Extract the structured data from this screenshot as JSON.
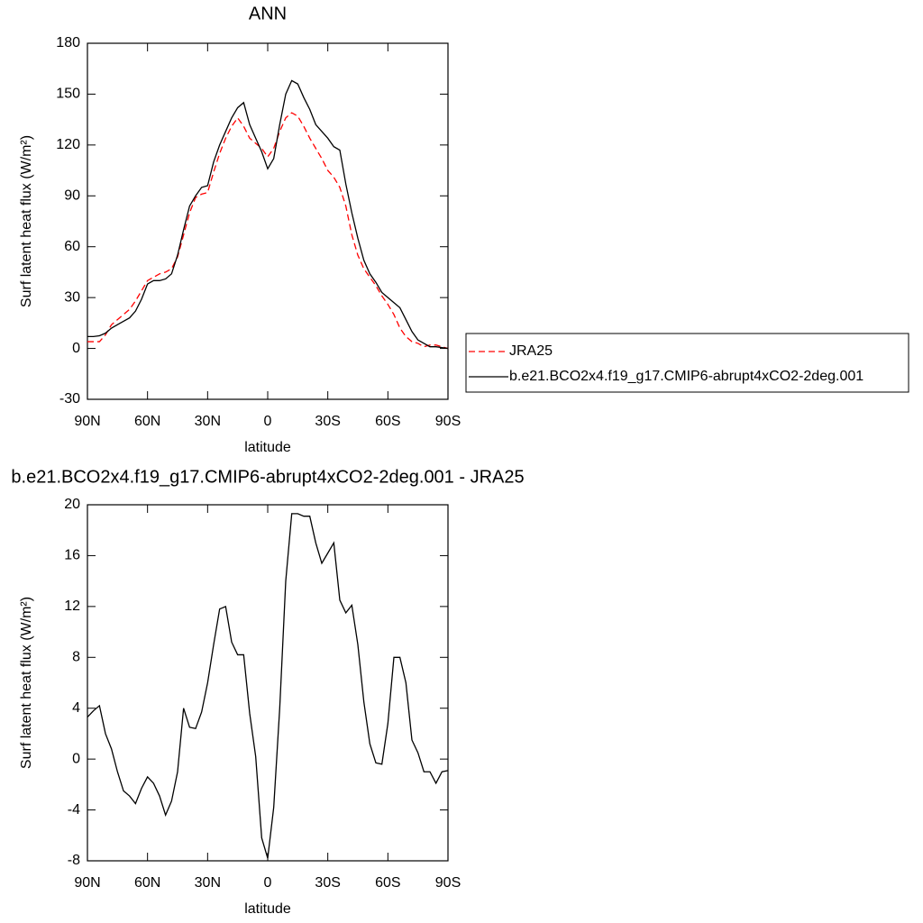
{
  "chart_data": [
    {
      "type": "line",
      "title": "ANN",
      "xlabel": "latitude",
      "ylabel": "Surf latent heat flux (W/m²)",
      "x": [
        90,
        87,
        84,
        81,
        78,
        75,
        72,
        69,
        66,
        63,
        60,
        57,
        54,
        51,
        48,
        45,
        42,
        39,
        36,
        33,
        30,
        27,
        24,
        21,
        18,
        15,
        12,
        9,
        6,
        3,
        0,
        -3,
        -6,
        -9,
        -12,
        -15,
        -18,
        -21,
        -24,
        -27,
        -30,
        -33,
        -36,
        -39,
        -42,
        -45,
        -48,
        -51,
        -54,
        -57,
        -60,
        -63,
        -66,
        -69,
        -72,
        -75,
        -78,
        -81,
        -84,
        -87,
        -90
      ],
      "series": [
        {
          "name": "JRA25",
          "color": "#ff0000",
          "dash": "dashed",
          "values": [
            4,
            4,
            4,
            8,
            14,
            17,
            20,
            23,
            28,
            34,
            40,
            42,
            44,
            45,
            47,
            54,
            67,
            80,
            89,
            91,
            92,
            104,
            115,
            124,
            131,
            136,
            131,
            124,
            121,
            118,
            113,
            118,
            128,
            136,
            139,
            137,
            131,
            124,
            118,
            112,
            105,
            101,
            95,
            84,
            67,
            55,
            47,
            42,
            37,
            31,
            26,
            20,
            12,
            7,
            4,
            3,
            1,
            2,
            2,
            1,
            0
          ]
        },
        {
          "name": "b.e21.BCO2x4.f19_g17.CMIP6-abrupt4xCO2-2deg.001",
          "color": "#000000",
          "dash": "solid",
          "values": [
            7,
            7,
            7.5,
            9,
            12,
            14,
            16,
            18,
            22,
            29,
            38,
            40,
            40,
            41,
            44,
            55,
            70,
            84,
            90,
            95,
            96,
            110,
            120,
            128,
            136,
            142,
            145,
            132,
            124,
            116,
            106,
            112,
            132,
            150,
            158,
            156,
            148,
            141,
            132,
            128,
            124,
            119,
            117,
            97,
            80,
            65,
            52,
            44,
            39,
            33,
            30,
            27,
            24,
            17,
            10,
            5,
            3,
            1,
            1,
            0.5,
            0
          ]
        }
      ],
      "xlim": [
        90,
        -90
      ],
      "xticks": [
        {
          "value": 90,
          "label": "90N"
        },
        {
          "value": 60,
          "label": "60N"
        },
        {
          "value": 30,
          "label": "30N"
        },
        0,
        {
          "value": -30,
          "label": "30S"
        },
        {
          "value": -60,
          "label": "60S"
        },
        {
          "value": -90,
          "label": "90S"
        }
      ],
      "ylim": [
        -30,
        180
      ],
      "yticks": [
        -30,
        0,
        30,
        60,
        90,
        120,
        150,
        180
      ]
    },
    {
      "type": "line",
      "title": "b.e21.BCO2x4.f19_g17.CMIP6-abrupt4xCO2-2deg.001 - JRA25",
      "xlabel": "latitude",
      "ylabel": "Surf latent heat flux (W/m²)",
      "x": [
        90,
        87,
        84,
        81,
        78,
        75,
        72,
        69,
        66,
        63,
        60,
        57,
        54,
        51,
        48,
        45,
        42,
        39,
        36,
        33,
        30,
        27,
        24,
        21,
        18,
        15,
        12,
        9,
        6,
        3,
        0,
        -3,
        -6,
        -9,
        -12,
        -15,
        -18,
        -21,
        -24,
        -27,
        -30,
        -33,
        -36,
        -39,
        -42,
        -45,
        -48,
        -51,
        -54,
        -57,
        -60,
        -63,
        -66,
        -69,
        -72,
        -75,
        -78,
        -81,
        -84,
        -87,
        -90
      ],
      "series": [
        {
          "color": "#000000",
          "dash": "solid",
          "values": [
            3.3,
            3.8,
            4.2,
            2.0,
            0.8,
            -1,
            -2.5,
            -2.9,
            -3.5,
            -2.3,
            -1.4,
            -1.9,
            -2.9,
            -4.4,
            -3.3,
            -1,
            4,
            2.5,
            2.4,
            3.7,
            6,
            9,
            11.8,
            12,
            9.2,
            8.2,
            8.2,
            3.6,
            0.2,
            -6.2,
            -7.8,
            -3.8,
            4,
            14,
            19.3,
            19.3,
            19.1,
            19.1,
            17,
            15.4,
            16.2,
            17,
            12.5,
            11.5,
            12.1,
            9,
            4.5,
            1.2,
            -0.3,
            -0.4,
            2.8,
            8,
            8,
            6,
            1.5,
            0.5,
            -1,
            -1,
            -1.9,
            -1,
            -0.9
          ]
        }
      ],
      "xlim": [
        90,
        -90
      ],
      "xticks": [
        {
          "value": 90,
          "label": "90N"
        },
        {
          "value": 60,
          "label": "60N"
        },
        {
          "value": 30,
          "label": "30N"
        },
        0,
        {
          "value": -30,
          "label": "30S"
        },
        {
          "value": -60,
          "label": "60S"
        },
        {
          "value": -90,
          "label": "90S"
        }
      ],
      "ylim": [
        -8,
        20
      ],
      "yticks": [
        -8,
        -4,
        0,
        4,
        8,
        12,
        16,
        20
      ]
    }
  ]
}
